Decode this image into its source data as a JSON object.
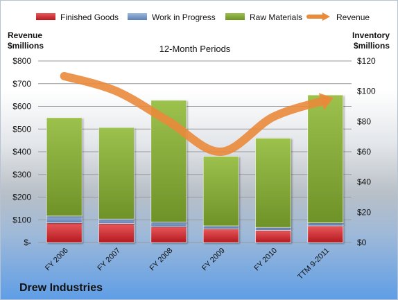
{
  "company": "Drew Industries",
  "colors": {
    "finished_goods": "#d9262b",
    "work_in_progress": "#6f95c9",
    "raw_materials": "#84a93a",
    "revenue": "#ea8a3b"
  },
  "chart_data": {
    "type": "bar",
    "stacked": true,
    "title": "12-Month Periods",
    "categories": [
      "FY 2006",
      "FY 2007",
      "FY 2008",
      "FY 2009",
      "FY 2010",
      "TTM 9-2011"
    ],
    "left_axis": {
      "title_line1": "Revenue",
      "title_line2": "$millions",
      "min": 0,
      "max": 800,
      "step": 100,
      "tick_labels": [
        "$-",
        "$100",
        "$200",
        "$300",
        "$400",
        "$500",
        "$600",
        "$700",
        "$800"
      ]
    },
    "right_axis": {
      "title_line1": "Inventory",
      "title_line2": "$millions",
      "min": 0,
      "max": 120,
      "step": 20,
      "tick_labels": [
        "$0",
        "$20",
        "$40",
        "$60",
        "$80",
        "$100",
        "$120"
      ]
    },
    "legend_position": "top",
    "series": [
      {
        "name": "Finished Goods",
        "type": "bar",
        "axis": "right",
        "values": [
          13,
          12.5,
          10.5,
          9,
          8,
          11
        ]
      },
      {
        "name": "Work in Progress",
        "type": "bar",
        "axis": "right",
        "values": [
          4.5,
          3,
          3,
          2,
          2,
          2
        ]
      },
      {
        "name": "Raw Materials",
        "type": "bar",
        "axis": "right",
        "values": [
          65,
          60.5,
          80.5,
          46,
          59,
          84.5
        ]
      },
      {
        "name": "Revenue",
        "type": "line",
        "axis": "right",
        "values": [
          110,
          100,
          80,
          60,
          83,
          94
        ]
      }
    ]
  }
}
